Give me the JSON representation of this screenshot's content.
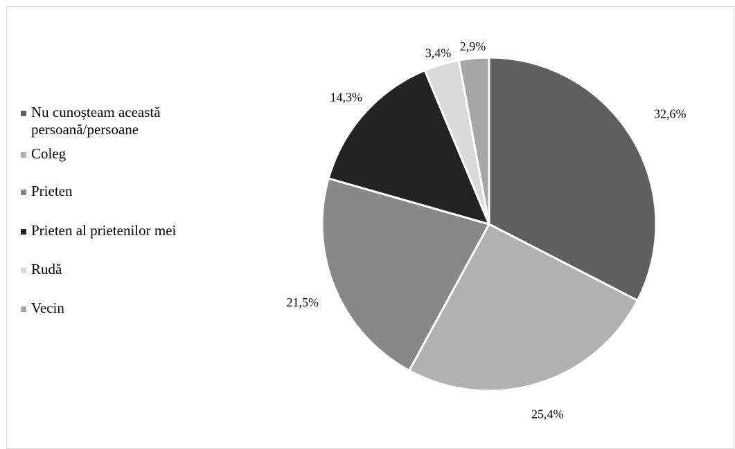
{
  "chart_data": {
    "type": "pie",
    "title": "",
    "legend_position": "left",
    "categories": [
      "Nu cunoșteam această persoană/persoane",
      "Coleg",
      "Prieten",
      "Prieten al prietenilor mei",
      "Rudă",
      "Vecin"
    ],
    "values": [
      32.6,
      25.4,
      21.5,
      14.3,
      3.4,
      2.9
    ],
    "value_labels": [
      "32,6%",
      "25,4%",
      "21,5%",
      "14,3%",
      "3,4%",
      "2,9%"
    ],
    "colors": [
      "#5f5f5f",
      "#b1b1b1",
      "#888888",
      "#232323",
      "#dadada",
      "#a6a6a6"
    ],
    "slice_border_color": "#ffffff"
  },
  "legend": {
    "items": [
      {
        "label": "Nu cunoșteam această persoană/persoane",
        "color": "#5f5f5f"
      },
      {
        "label": "Coleg",
        "color": "#b1b1b1"
      },
      {
        "label": "Prieten",
        "color": "#888888"
      },
      {
        "label": "Prieten al prietenilor mei",
        "color": "#232323"
      },
      {
        "label": "Rudă",
        "color": "#dadada"
      },
      {
        "label": "Vecin",
        "color": "#a6a6a6"
      }
    ]
  }
}
